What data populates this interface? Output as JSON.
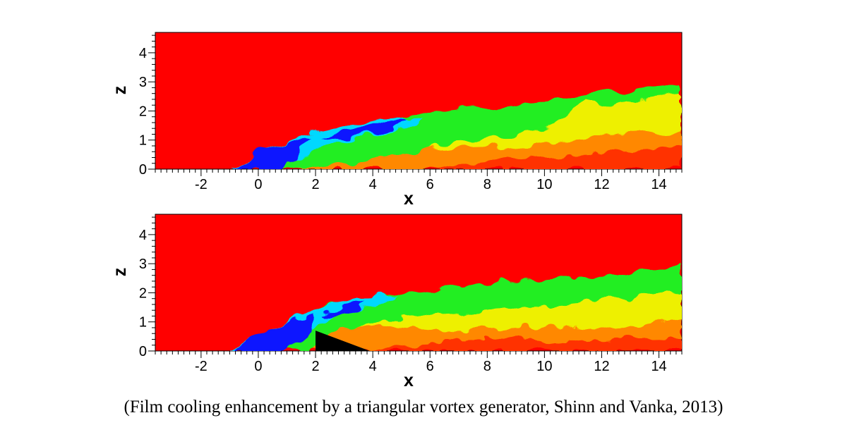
{
  "caption": "(Film cooling enhancement by a triangular vortex generator, Shinn and Vanka, 2013)",
  "colors": {
    "background_free_stream": "#ff0000",
    "coolant_core": "#0a14ff",
    "cyan": "#00d8ff",
    "green": "#22ee22",
    "yellow": "#eef000",
    "orange": "#ff8800",
    "vortex_generator": "#000000"
  },
  "chart_data": [
    {
      "type": "heatmap",
      "xlabel": "x",
      "ylabel": "z",
      "xlim": [
        -3.6,
        14.8
      ],
      "ylim": [
        0,
        4.7
      ],
      "x_ticks": [
        "-2",
        "0",
        "2",
        "4",
        "6",
        "8",
        "10",
        "12",
        "14"
      ],
      "y_ticks": [
        "0",
        "1",
        "2",
        "3",
        "4"
      ],
      "vortex_generator": false
    },
    {
      "type": "heatmap",
      "xlabel": "x",
      "ylabel": "z",
      "xlim": [
        -3.6,
        14.8
      ],
      "ylim": [
        0,
        4.7
      ],
      "x_ticks": [
        "-2",
        "0",
        "2",
        "4",
        "6",
        "8",
        "10",
        "12",
        "14"
      ],
      "y_ticks": [
        "0",
        "1",
        "2",
        "3",
        "4"
      ],
      "vortex_generator": true,
      "vortex_generator_shape": {
        "x": [
          2,
          2,
          3.9
        ],
        "z": [
          0,
          0.7,
          0
        ]
      }
    }
  ]
}
